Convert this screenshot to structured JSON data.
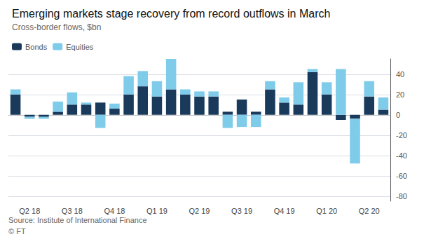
{
  "chart_data": {
    "type": "bar",
    "title": "Emerging markets stage recovery from record outflows in March",
    "subtitle": "Cross-border flows, $bn",
    "annotations": [
      "Source: Institute of International Finance",
      "© FT"
    ],
    "categories": [
      null,
      "Q2 18",
      null,
      null,
      "Q3 18",
      null,
      null,
      "Q4 18",
      null,
      null,
      "Q1 19",
      null,
      null,
      "Q2 19",
      null,
      null,
      "Q3 19",
      null,
      null,
      "Q4 19",
      null,
      null,
      "Q1 20",
      null,
      null,
      "Q2 20",
      null
    ],
    "series": [
      {
        "name": "Bonds",
        "color": "#1a3a5c",
        "values": [
          20,
          -2,
          -2,
          3,
          10,
          10,
          12,
          6,
          20,
          28,
          18,
          25,
          20,
          18,
          18,
          3,
          15,
          3,
          25,
          12,
          10,
          42,
          20,
          -5,
          -4,
          18,
          5
        ]
      },
      {
        "name": "Equities",
        "color": "#7ecbea",
        "values": [
          5,
          -2,
          -2,
          10,
          12,
          2,
          -13,
          5,
          18,
          15,
          15,
          30,
          5,
          5,
          5,
          -13,
          -12,
          -12,
          8,
          5,
          22,
          3,
          12,
          45,
          -44,
          15,
          12
        ]
      }
    ],
    "stacked": true,
    "ylim": [
      -85,
      55
    ],
    "yticks": [
      -80,
      -60,
      -40,
      -20,
      0,
      20,
      40
    ],
    "grid": true,
    "legend": "upper left"
  }
}
